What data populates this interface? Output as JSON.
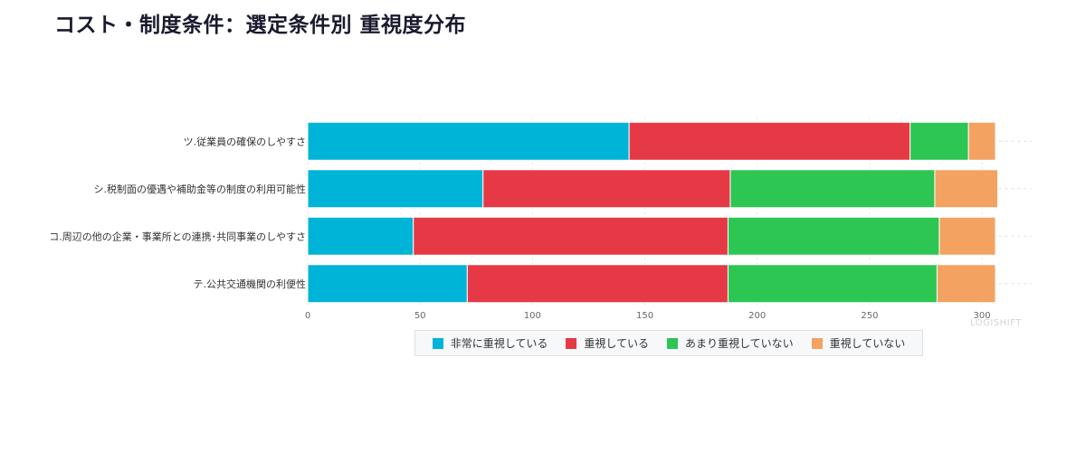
{
  "title": "コスト・制度条件：選定条件別 重視度分布",
  "watermark": "LOGISHIFT",
  "chart_data": {
    "type": "bar",
    "orientation": "horizontal",
    "stacked": true,
    "categories": [
      "ツ.従業員の確保のしやすさ",
      "シ.税制面の優遇や補助金等の制度の利用可能性",
      "コ.周辺の他の企業・事業所との連携･共同事業のしやすさ",
      "テ.公共交通機関の利便性"
    ],
    "series": [
      {
        "name": "非常に重視している",
        "color": "#00b4d8",
        "values": [
          143,
          78,
          47,
          71
        ]
      },
      {
        "name": "重視している",
        "color": "#e63946",
        "values": [
          125,
          110,
          140,
          116
        ]
      },
      {
        "name": "あまり重視していない",
        "color": "#2dc653",
        "values": [
          26,
          91,
          94,
          93
        ]
      },
      {
        "name": "重視していない",
        "color": "#f4a261",
        "values": [
          12,
          28,
          25,
          26
        ]
      }
    ],
    "xlim": [
      0,
      306
    ],
    "xticks": [
      0,
      50,
      100,
      150,
      200,
      250,
      300
    ],
    "xlabel": "",
    "ylabel": "",
    "grid": true,
    "legend_position": "bottom"
  }
}
